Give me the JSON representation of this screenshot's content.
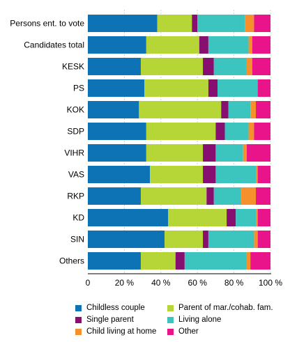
{
  "colors": {
    "Childless couple": "#0e73b4",
    "Single parent": "#870f6f",
    "Child living at home": "#f6902d",
    "Parent of mar./cohab. fam.": "#b5d636",
    "Living alone": "#3cc4be",
    "Other": "#e9148a"
  },
  "legend": [
    {
      "name": "Childless couple",
      "label": "Childless couple"
    },
    {
      "name": "Parent of mar./cohab. fam.",
      "label": "Parent of mar./cohab. fam."
    },
    {
      "name": "Single parent",
      "label": "Single parent"
    },
    {
      "name": "Living alone",
      "label": "Living alone"
    },
    {
      "name": "Child living at home",
      "label": "Child living at home"
    },
    {
      "name": "Other",
      "label": "Other"
    }
  ],
  "chart_data": {
    "type": "bar",
    "orientation": "horizontal",
    "stacked": true,
    "categories": [
      "Persons ent. to vote",
      "Candidates total",
      "KESK",
      "PS",
      "KOK",
      "SDP",
      "VIHR",
      "VAS",
      "RKP",
      "KD",
      "SIN",
      "Others"
    ],
    "series": [
      {
        "name": "Childless couple",
        "values": [
          38,
          32,
          29,
          31,
          28,
          32,
          32,
          34,
          29,
          44,
          42,
          29
        ]
      },
      {
        "name": "Parent of mar./cohab. fam.",
        "values": [
          19,
          29,
          34,
          35,
          45,
          38,
          31,
          29,
          36,
          32,
          21,
          19
        ]
      },
      {
        "name": "Single parent",
        "values": [
          3,
          5,
          6,
          5,
          4,
          5,
          7,
          7,
          4,
          5,
          3,
          5
        ]
      },
      {
        "name": "Living alone",
        "values": [
          26,
          22,
          18,
          22,
          12,
          13,
          15,
          22,
          15,
          11,
          25,
          34
        ]
      },
      {
        "name": "Child living at home",
        "values": [
          5,
          2,
          3,
          0,
          3,
          3,
          2,
          1,
          8,
          1,
          2,
          2
        ]
      },
      {
        "name": "Other",
        "values": [
          9,
          10,
          10,
          7,
          8,
          9,
          13,
          7,
          8,
          7,
          7,
          11
        ]
      }
    ],
    "xlim": [
      0,
      100
    ],
    "xticks": [
      "0",
      "20 %",
      "40 %",
      "60 %",
      "80 %",
      "100 %"
    ],
    "grid": true,
    "legend_position": "bottom"
  }
}
